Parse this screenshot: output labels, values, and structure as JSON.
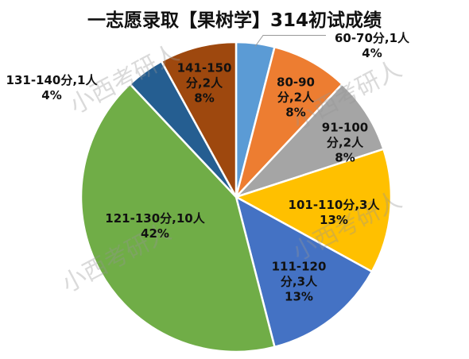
{
  "chart_data": {
    "type": "pie",
    "title": "一志愿录取【果树学】314初试成绩",
    "categories": [
      "60-70分,1人",
      "80-90\n分,2人",
      "91-100\n分,2人",
      "101-110分,3人",
      "111-120\n分,3人",
      "121-130分,10人",
      "131-140分,1人",
      "141-150\n分,2人"
    ],
    "values": [
      4,
      8,
      8,
      13,
      13,
      42,
      4,
      8
    ],
    "value_labels": [
      "4%",
      "8%",
      "8%",
      "13%",
      "13%",
      "42%",
      "4%",
      "8%"
    ],
    "colors": [
      "#5b9bd5",
      "#ed7d31",
      "#a5a5a5",
      "#ffc000",
      "#4472c4",
      "#70ad47",
      "#255e91",
      "#9e480e"
    ],
    "watermark": "小西考研人"
  }
}
